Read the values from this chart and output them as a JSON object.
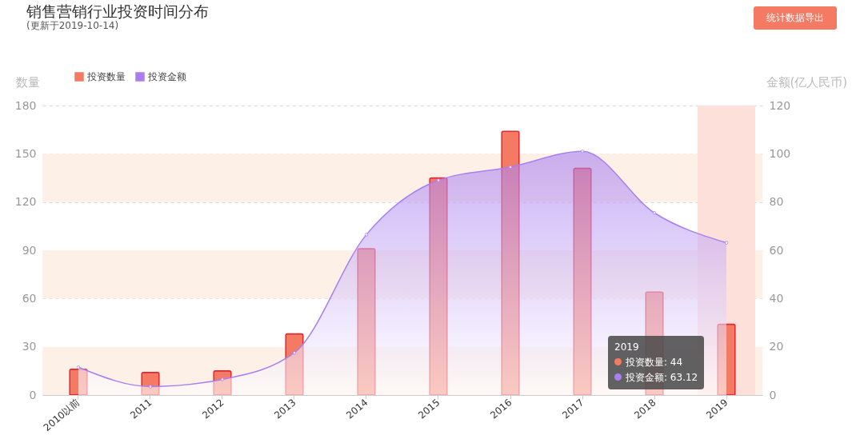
{
  "chart_data": {
    "type": "bar",
    "title": "销售营销行业投资时间分布",
    "subtitle": "(更新于2019-10-14)",
    "ylabel": "数量",
    "y2label": "金额(亿人民币)",
    "categories": [
      "2010以前",
      "2011",
      "2012",
      "2013",
      "2014",
      "2015",
      "2016",
      "2017",
      "2018",
      "2019"
    ],
    "series": [
      {
        "name": "投资数量",
        "color": "#f47a64",
        "values": [
          16,
          14,
          15,
          38,
          91,
          135,
          164,
          141,
          64,
          44
        ]
      },
      {
        "name": "投资金额",
        "type": "area",
        "axis": "y2",
        "color": "#a87ff0",
        "values": [
          11.5,
          3.5,
          6.5,
          17.5,
          66.5,
          89,
          94.5,
          101,
          75.5,
          63.12
        ]
      }
    ],
    "ylim": [
      0,
      180
    ],
    "yticks": [
      0,
      30,
      60,
      90,
      120,
      150,
      180
    ],
    "y2lim": [
      0,
      120
    ],
    "y2ticks": [
      0,
      20,
      40,
      60,
      80,
      100,
      120
    ],
    "grid": "y",
    "legend": "top left",
    "marker": "circle",
    "bands": [
      {
        "axis": "y",
        "from": 0,
        "to": 30,
        "color": "#fdf1e7"
      },
      {
        "axis": "y",
        "from": 60,
        "to": 90,
        "color": "#fdf1e7"
      },
      {
        "axis": "y",
        "from": 120,
        "to": 150,
        "color": "#fdf1e7"
      },
      {
        "axis": "x",
        "from": "2019",
        "to": "2019",
        "color": "#fde0da"
      }
    ],
    "annotations": [
      "统计数据导出",
      "2019",
      "投资数量: 44",
      "投资金额: 63.12"
    ]
  }
}
